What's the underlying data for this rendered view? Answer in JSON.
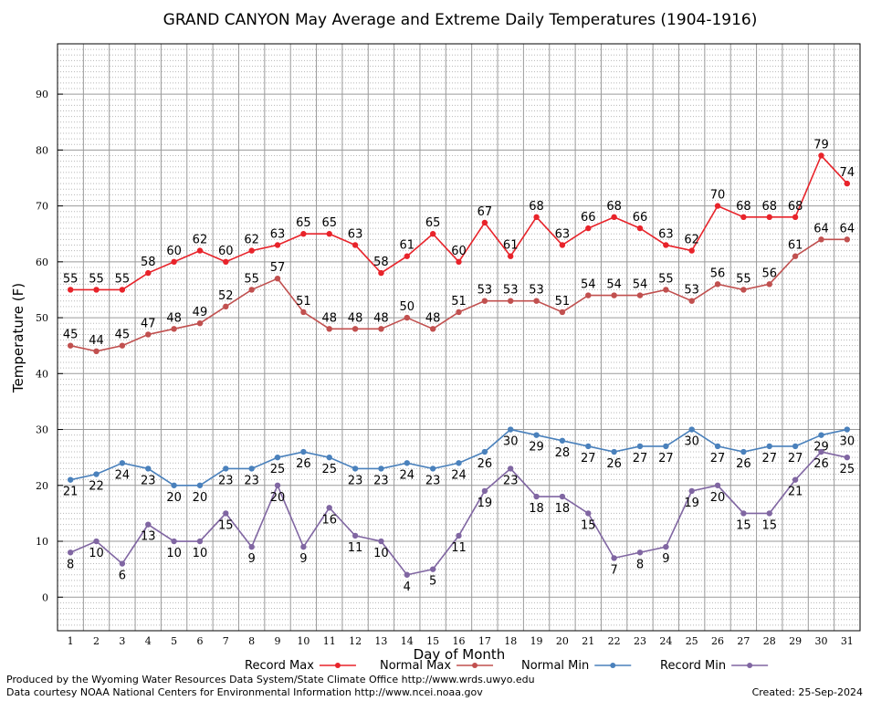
{
  "chart_data": {
    "type": "line",
    "title": "GRAND CANYON May Average and Extreme Daily Temperatures (1904-1916)",
    "xlabel": "Day of Month",
    "ylabel": "Temperature (F)",
    "x": [
      1,
      2,
      3,
      4,
      5,
      6,
      7,
      8,
      9,
      10,
      11,
      12,
      13,
      14,
      15,
      16,
      17,
      18,
      19,
      20,
      21,
      22,
      23,
      24,
      25,
      26,
      27,
      28,
      29,
      30,
      31
    ],
    "xlim": [
      0.5,
      31.5
    ],
    "ylim": [
      -6,
      99
    ],
    "yticks": [
      0,
      10,
      20,
      30,
      40,
      50,
      60,
      70,
      80,
      90
    ],
    "grid": true,
    "legend_position": "bottom",
    "series": [
      {
        "name": "Record Max",
        "color": "#e8232a",
        "label_position": "above",
        "values": [
          55,
          55,
          55,
          58,
          60,
          62,
          60,
          62,
          63,
          65,
          65,
          63,
          58,
          61,
          65,
          60,
          67,
          61,
          68,
          63,
          66,
          68,
          66,
          63,
          62,
          70,
          68,
          68,
          68,
          79,
          74
        ]
      },
      {
        "name": "Normal Max",
        "color": "#c1504f",
        "label_position": "above",
        "values": [
          45,
          44,
          45,
          47,
          48,
          49,
          52,
          55,
          57,
          51,
          48,
          48,
          48,
          50,
          48,
          51,
          53,
          53,
          53,
          51,
          54,
          54,
          54,
          55,
          53,
          56,
          55,
          56,
          61,
          64,
          64
        ]
      },
      {
        "name": "Normal Min",
        "color": "#4a81bc",
        "label_position": "below",
        "values": [
          21,
          22,
          24,
          23,
          20,
          20,
          23,
          23,
          25,
          26,
          25,
          23,
          23,
          24,
          23,
          24,
          26,
          30,
          29,
          28,
          27,
          26,
          27,
          27,
          30,
          27,
          26,
          27,
          27,
          29,
          30
        ]
      },
      {
        "name": "Record Min",
        "color": "#8066a2",
        "label_position": "below",
        "values": [
          8,
          10,
          6,
          13,
          10,
          10,
          15,
          9,
          20,
          9,
          16,
          11,
          10,
          4,
          5,
          11,
          19,
          23,
          18,
          18,
          15,
          7,
          8,
          9,
          19,
          20,
          15,
          15,
          21,
          26,
          25
        ]
      }
    ]
  },
  "footer": {
    "produced_by": "Produced by the Wyoming Water Resources Data System/State Climate Office http://www.wrds.uwyo.edu",
    "data_courtesy": "Data courtesy NOAA National Centers for Environmental Information http://www.ncei.noaa.gov",
    "created": "Created:  25-Sep-2024"
  }
}
